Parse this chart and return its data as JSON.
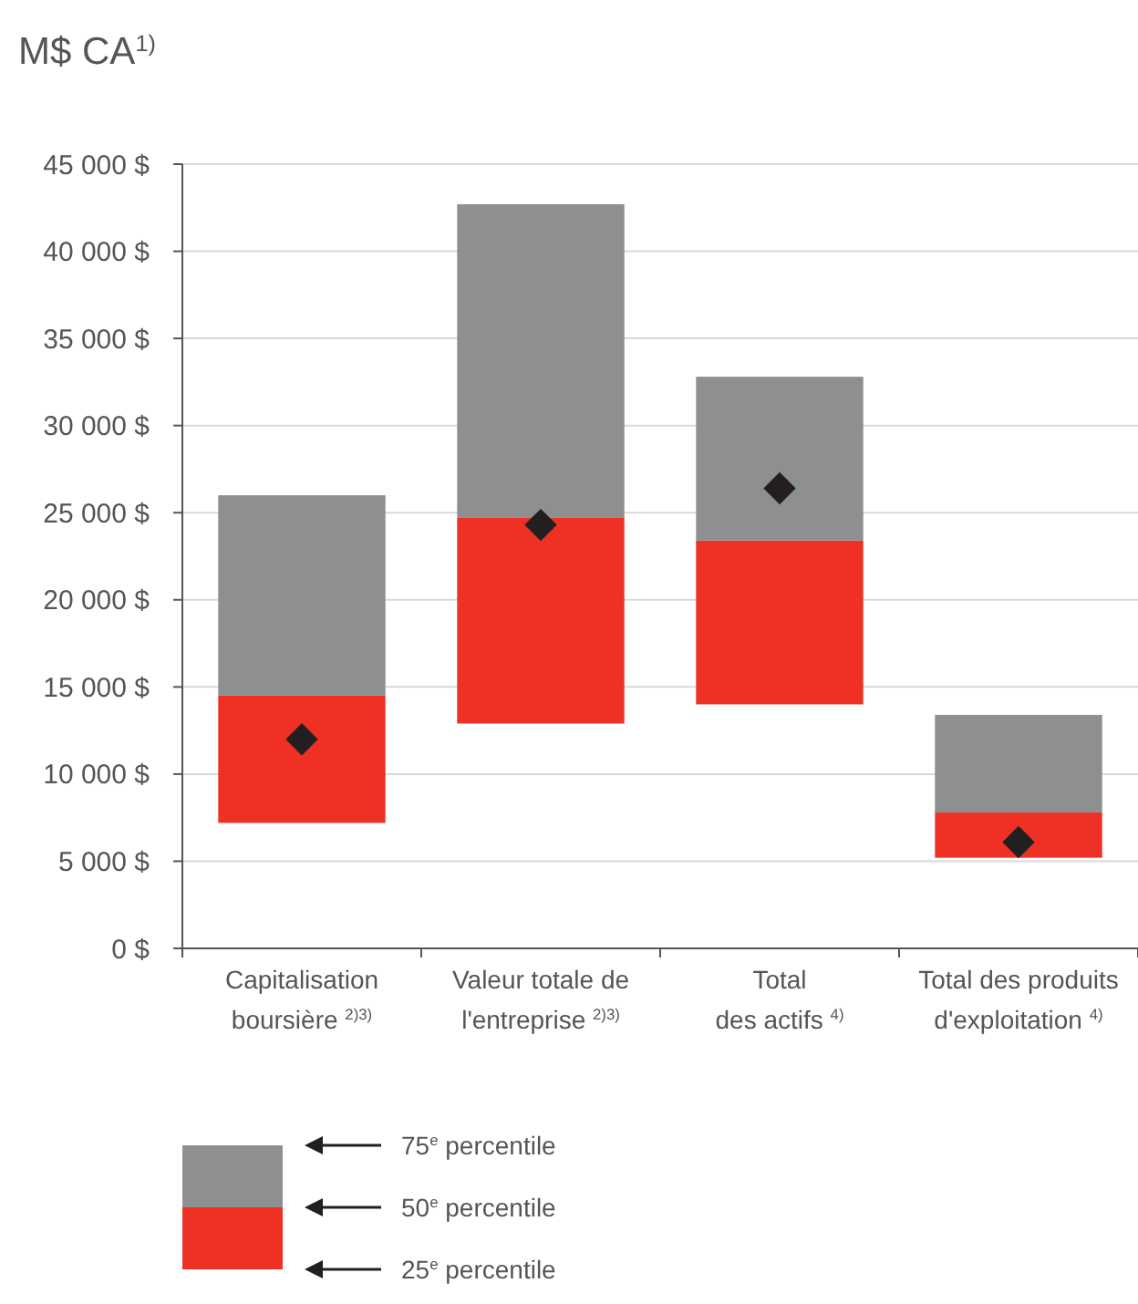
{
  "chart_data": {
    "type": "bar",
    "title": "M$ CA$^{1)}$",
    "categories": [
      "Capitalisation\nboursière $^{2)3)}$",
      "Valeur totale de\nl'entreprise $^{2)3)}$",
      "Total\ndes actifs $^{4)}$",
      "Total des produits\nd'exploitation $^{4)}$"
    ],
    "series": [
      {
        "color": "#ee3124",
        "base": [
          7200,
          12900,
          14000,
          5200
        ],
        "values": [
          7300,
          11800,
          9400,
          2600
        ]
      },
      {
        "color": "#8e8f91",
        "base": [
          14500,
          24700,
          23400,
          7800
        ],
        "values": [
          11500,
          18000,
          9400,
          5600
        ]
      },
      {
        "type": "scatter",
        "color": "#231f20",
        "marker": "diamond",
        "values": [
          12000,
          24300,
          26400,
          6100
        ]
      }
    ],
    "ylim": [
      0,
      45000
    ],
    "yticks": [
      {
        "value": 0,
        "label": "0 $"
      },
      {
        "value": 5000,
        "label": "5 000 $"
      },
      {
        "value": 10000,
        "label": "10 000 $"
      },
      {
        "value": 15000,
        "label": "15 000 $"
      },
      {
        "value": 20000,
        "label": "20 000 $"
      },
      {
        "value": 25000,
        "label": "25 000 $"
      },
      {
        "value": 30000,
        "label": "30 000 $"
      },
      {
        "value": 35000,
        "label": "35 000 $"
      },
      {
        "value": 40000,
        "label": "40 000 $"
      },
      {
        "value": 45000,
        "label": "45 000 $"
      }
    ],
    "grid": "y",
    "annotations": [
      "75$^{e}$ percentile",
      "50$^{e}$ percentile",
      "25$^{e}$ percentile"
    ]
  }
}
